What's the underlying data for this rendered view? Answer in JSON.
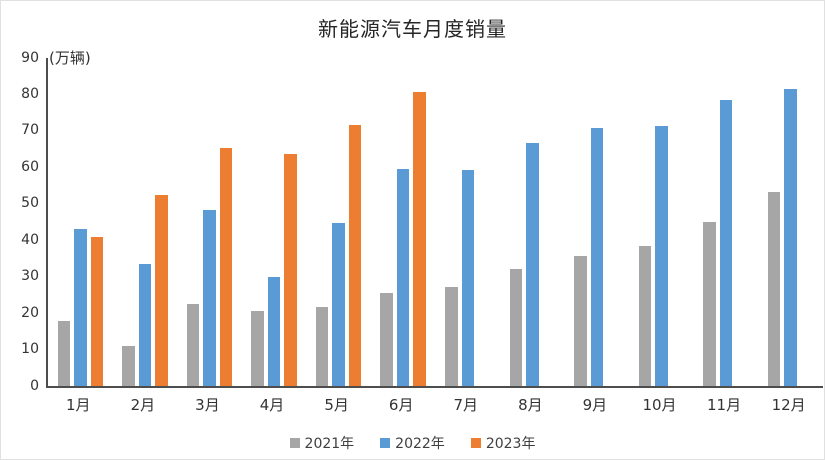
{
  "title": "新能源汽车月度销量",
  "unit_label": "(万辆)",
  "chart_data": {
    "type": "bar",
    "title": "新能源汽车月度销量",
    "unit_label": "(万辆)",
    "xlabel": "",
    "ylabel": "万辆",
    "categories": [
      "1月",
      "2月",
      "3月",
      "4月",
      "5月",
      "6月",
      "7月",
      "8月",
      "9月",
      "10月",
      "11月",
      "12月"
    ],
    "series": [
      {
        "name": "2021年",
        "color": "#a6a6a6",
        "values": [
          17.9,
          10.9,
          22.6,
          20.6,
          21.7,
          25.6,
          27.1,
          32.1,
          35.7,
          38.3,
          45.0,
          53.1
        ]
      },
      {
        "name": "2022年",
        "color": "#5b9bd5",
        "values": [
          43.1,
          33.4,
          48.4,
          29.9,
          44.7,
          59.6,
          59.3,
          66.6,
          70.8,
          71.4,
          78.6,
          81.4
        ]
      },
      {
        "name": "2023年",
        "color": "#ed7d31",
        "values": [
          40.8,
          52.5,
          65.3,
          63.6,
          71.7,
          80.6,
          null,
          null,
          null,
          null,
          null,
          null
        ]
      }
    ],
    "ylim": [
      0,
      90
    ],
    "ytick_step": 10,
    "yticks": [
      0,
      10,
      20,
      30,
      40,
      50,
      60,
      70,
      80,
      90
    ],
    "grid": false,
    "legend_position": "bottom",
    "axis_color": "#4d4d4d",
    "background_color": "#ffffff"
  }
}
